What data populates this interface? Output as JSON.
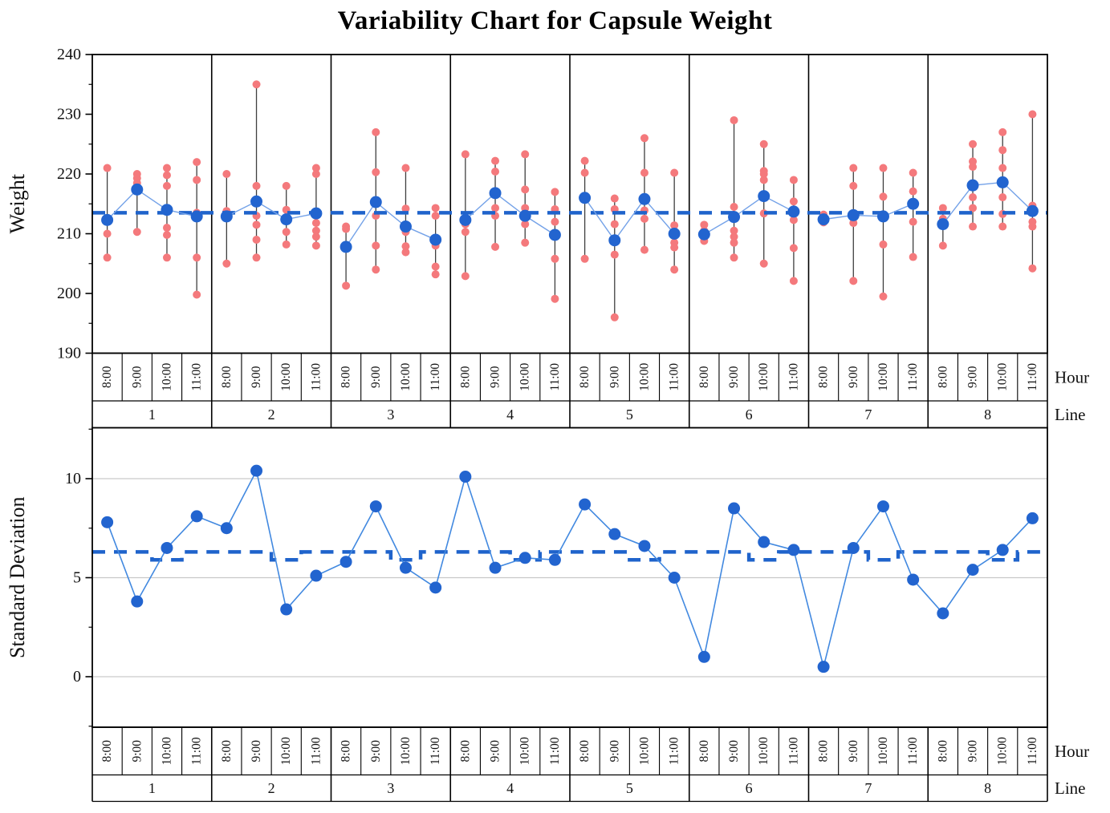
{
  "title": "Variability Chart for Capsule Weight",
  "right_labels": {
    "hour": "Hour",
    "line": "Line"
  },
  "hours": [
    "8:00",
    "9:00",
    "10:00",
    "11:00"
  ],
  "lines": [
    "1",
    "2",
    "3",
    "4",
    "5",
    "6",
    "7",
    "8"
  ],
  "colors": {
    "point_red": "#f4797c",
    "mean_blue": "#2264cf",
    "connector_blue": "#74a2e8",
    "line_blue": "#4289e0",
    "dashed_blue": "#1f63cb",
    "range_line": "#3f3f3f",
    "gridline": "#c9c9c9",
    "axis_black": "#000000",
    "text": "#111111"
  },
  "chart_data": [
    {
      "type": "scatter",
      "name": "weight-variability-panel",
      "title": "Variability Chart for Capsule Weight",
      "xlabel": "Hour",
      "panel_axis": "Line",
      "ylabel": "Weight",
      "ylim": [
        190,
        240
      ],
      "yticks_major": [
        240,
        230,
        220,
        210,
        200,
        190
      ],
      "yticks_minor": [
        235,
        225,
        215,
        205,
        195
      ],
      "grid": false,
      "grand_mean": 213.5,
      "groups": [
        {
          "line": "1",
          "hour": "8:00",
          "points": [
            221,
            210,
            206
          ],
          "mean": 212.3
        },
        {
          "line": "1",
          "hour": "9:00",
          "points": [
            220,
            219.3,
            218.5,
            210.3
          ],
          "mean": 217.4
        },
        {
          "line": "1",
          "hour": "10:00",
          "points": [
            221,
            219.8,
            218,
            211,
            209.8,
            206
          ],
          "mean": 214.0
        },
        {
          "line": "1",
          "hour": "11:00",
          "points": [
            222,
            219,
            213.5,
            206,
            199.8
          ],
          "mean": 212.9
        },
        {
          "line": "2",
          "hour": "8:00",
          "points": [
            220,
            213.8,
            205
          ],
          "mean": 212.9
        },
        {
          "line": "2",
          "hour": "9:00",
          "points": [
            235,
            218,
            213,
            211.5,
            209,
            206
          ],
          "mean": 215.4
        },
        {
          "line": "2",
          "hour": "10:00",
          "points": [
            218,
            214,
            210.3,
            208.2
          ],
          "mean": 212.4
        },
        {
          "line": "2",
          "hour": "11:00",
          "points": [
            221,
            220,
            211.8,
            210.5,
            209.5,
            208
          ],
          "mean": 213.4
        },
        {
          "line": "3",
          "hour": "8:00",
          "points": [
            211.2,
            210.8,
            201.3
          ],
          "mean": 207.8
        },
        {
          "line": "3",
          "hour": "9:00",
          "points": [
            227,
            220.3,
            213,
            208,
            204
          ],
          "mean": 215.3
        },
        {
          "line": "3",
          "hour": "10:00",
          "points": [
            221,
            214.2,
            210.3,
            207.9,
            206.9
          ],
          "mean": 211.2
        },
        {
          "line": "3",
          "hour": "11:00",
          "points": [
            214.3,
            213,
            208,
            204.5,
            203.2
          ],
          "mean": 209.0
        },
        {
          "line": "4",
          "hour": "8:00",
          "points": [
            223.3,
            211.6,
            210.3,
            202.9
          ],
          "mean": 212.3
        },
        {
          "line": "4",
          "hour": "9:00",
          "points": [
            222.2,
            220.4,
            214.3,
            213,
            207.8
          ],
          "mean": 216.8
        },
        {
          "line": "4",
          "hour": "10:00",
          "points": [
            223.3,
            217.4,
            214.3,
            211.6,
            208.5
          ],
          "mean": 213.0
        },
        {
          "line": "4",
          "hour": "11:00",
          "points": [
            217,
            214.1,
            212,
            210,
            205.8,
            199.1
          ],
          "mean": 209.8
        },
        {
          "line": "5",
          "hour": "8:00",
          "points": [
            222.2,
            220.2,
            205.8
          ],
          "mean": 216.0
        },
        {
          "line": "5",
          "hour": "9:00",
          "points": [
            215.9,
            214.1,
            211.6,
            206.5,
            196
          ],
          "mean": 208.9
        },
        {
          "line": "5",
          "hour": "10:00",
          "points": [
            226,
            220.2,
            213.9,
            212.5,
            207.3
          ],
          "mean": 215.8
        },
        {
          "line": "5",
          "hour": "11:00",
          "points": [
            220.2,
            211.4,
            209.8,
            208.5,
            207.7,
            204
          ],
          "mean": 210.0
        },
        {
          "line": "6",
          "hour": "8:00",
          "points": [
            211.5,
            210.5,
            209.5,
            208.8
          ],
          "mean": 209.9
        },
        {
          "line": "6",
          "hour": "9:00",
          "points": [
            229,
            214.5,
            210.5,
            209.5,
            208.5,
            206
          ],
          "mean": 212.8
        },
        {
          "line": "6",
          "hour": "10:00",
          "points": [
            225,
            220.5,
            220,
            219,
            213.4,
            205
          ],
          "mean": 216.3
        },
        {
          "line": "6",
          "hour": "11:00",
          "points": [
            219,
            215.4,
            212.3,
            207.6,
            202.1
          ],
          "mean": 213.7
        },
        {
          "line": "7",
          "hour": "8:00",
          "points": [
            213.2,
            212.6,
            211.9
          ],
          "mean": 212.4
        },
        {
          "line": "7",
          "hour": "9:00",
          "points": [
            221,
            218,
            213,
            211.8,
            202.1
          ],
          "mean": 213.1
        },
        {
          "line": "7",
          "hour": "10:00",
          "points": [
            221,
            216.2,
            213,
            208.2,
            199.5
          ],
          "mean": 212.9
        },
        {
          "line": "7",
          "hour": "11:00",
          "points": [
            220.2,
            217.1,
            212,
            206.1
          ],
          "mean": 215.0
        },
        {
          "line": "8",
          "hour": "8:00",
          "points": [
            214.3,
            212.5,
            208
          ],
          "mean": 211.6
        },
        {
          "line": "8",
          "hour": "9:00",
          "points": [
            225,
            222.1,
            221.2,
            216.1,
            214.3,
            211.2
          ],
          "mean": 218.1
        },
        {
          "line": "8",
          "hour": "10:00",
          "points": [
            227,
            224,
            221,
            216.1,
            213.3,
            211.2
          ],
          "mean": 218.6
        },
        {
          "line": "8",
          "hour": "11:00",
          "points": [
            230,
            214.7,
            212,
            211.2,
            204.2
          ],
          "mean": 213.8
        }
      ]
    },
    {
      "type": "line",
      "name": "std-dev-panel",
      "xlabel": "Hour",
      "panel_axis": "Line",
      "ylabel": "Standard Deviation",
      "ylim": [
        -2.5,
        12.6
      ],
      "yticks_major": [
        10,
        5,
        0
      ],
      "yticks_minor": [
        12.5,
        7.5,
        2.5,
        -2.5
      ],
      "grid": true,
      "ref_level_main": 6.3,
      "ref_level_dip": 5.9,
      "dip_hour": "10:00",
      "values": [
        7.8,
        3.8,
        6.5,
        8.1,
        7.5,
        10.4,
        3.4,
        5.1,
        5.8,
        8.6,
        5.5,
        4.5,
        10.1,
        5.5,
        6.0,
        5.9,
        8.7,
        7.2,
        6.6,
        5.0,
        1.0,
        8.5,
        6.8,
        6.4,
        0.5,
        6.5,
        8.6,
        4.9,
        3.2,
        5.4,
        6.4,
        8.0
      ]
    }
  ]
}
